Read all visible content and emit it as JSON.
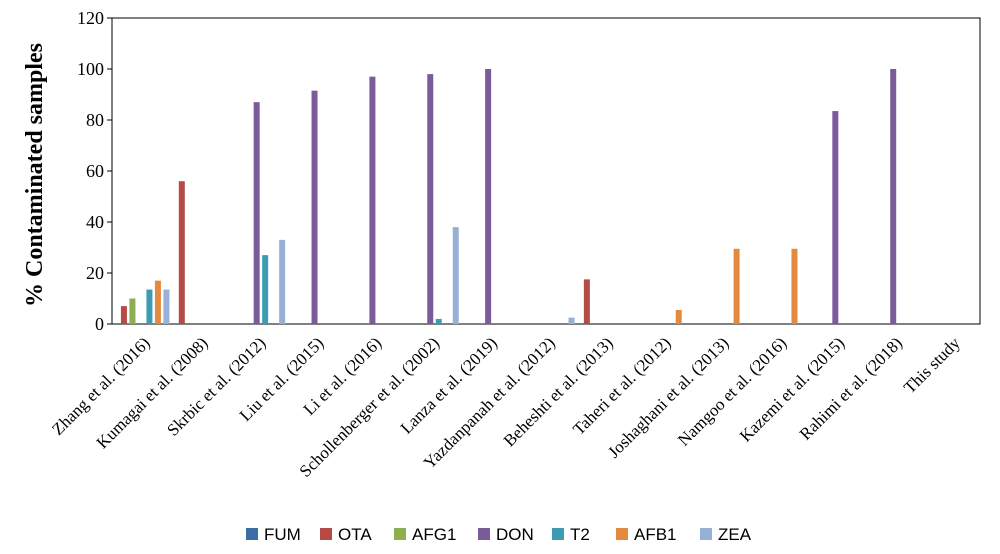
{
  "chart_data": {
    "type": "bar",
    "title": "",
    "xlabel": "",
    "ylabel": "% Contaminated samples",
    "ylim": [
      0,
      120
    ],
    "yticks": [
      0,
      20,
      40,
      60,
      80,
      100,
      120
    ],
    "grid": false,
    "legend_position": "bottom",
    "categories": [
      "Zhang et al. (2016)",
      "Kumagai et al. (2008)",
      "Skrbic et al. (2012)",
      "Liu et al. (2015)",
      "Li et al. (2016)",
      "Schollenberger et al. (2002)",
      "Lanza et al. (2019)",
      "Yazdanpanah et al. (2012)",
      "Beheshti et al. (2013)",
      "Taheri et al. (2012)",
      "Joshaghani et al. (2013)",
      "Namgoo et al. (2016)",
      "Kazemi et al. (2015)",
      "Rahimi et al. (2018)",
      "This study"
    ],
    "series": [
      {
        "name": "FUM",
        "color": "#3a6ea5",
        "values": [
          0,
          0,
          0,
          0,
          0,
          0,
          0,
          0,
          0,
          0,
          0,
          0,
          0,
          0,
          0
        ]
      },
      {
        "name": "OTA",
        "color": "#b64a47",
        "values": [
          7,
          56,
          0,
          0,
          0,
          0,
          0,
          0,
          17.5,
          0,
          0,
          0,
          0,
          0,
          0
        ]
      },
      {
        "name": "AFG1",
        "color": "#8fae4f",
        "values": [
          10,
          0,
          0,
          0,
          0,
          0,
          0,
          0,
          0,
          0,
          0,
          0,
          0,
          0,
          0
        ]
      },
      {
        "name": "DON",
        "color": "#7a5c9a",
        "values": [
          0,
          0,
          87,
          91.5,
          97,
          98,
          100,
          0,
          0,
          0,
          0,
          0,
          83.5,
          100,
          0
        ]
      },
      {
        "name": "T2",
        "color": "#3d9bb3",
        "values": [
          13.5,
          0,
          27,
          0,
          0,
          2,
          0,
          0,
          0,
          0,
          0,
          0,
          0,
          0,
          0
        ]
      },
      {
        "name": "AFB1",
        "color": "#e48a3e",
        "values": [
          17,
          0,
          0,
          0,
          0,
          0,
          0,
          0,
          0,
          5.5,
          29.5,
          29.5,
          0,
          0,
          0
        ]
      },
      {
        "name": "ZEA",
        "color": "#97b0d6",
        "values": [
          13.5,
          0,
          33,
          0,
          0,
          38,
          0,
          2.5,
          0,
          0,
          0,
          0,
          0,
          0,
          0
        ]
      }
    ]
  }
}
